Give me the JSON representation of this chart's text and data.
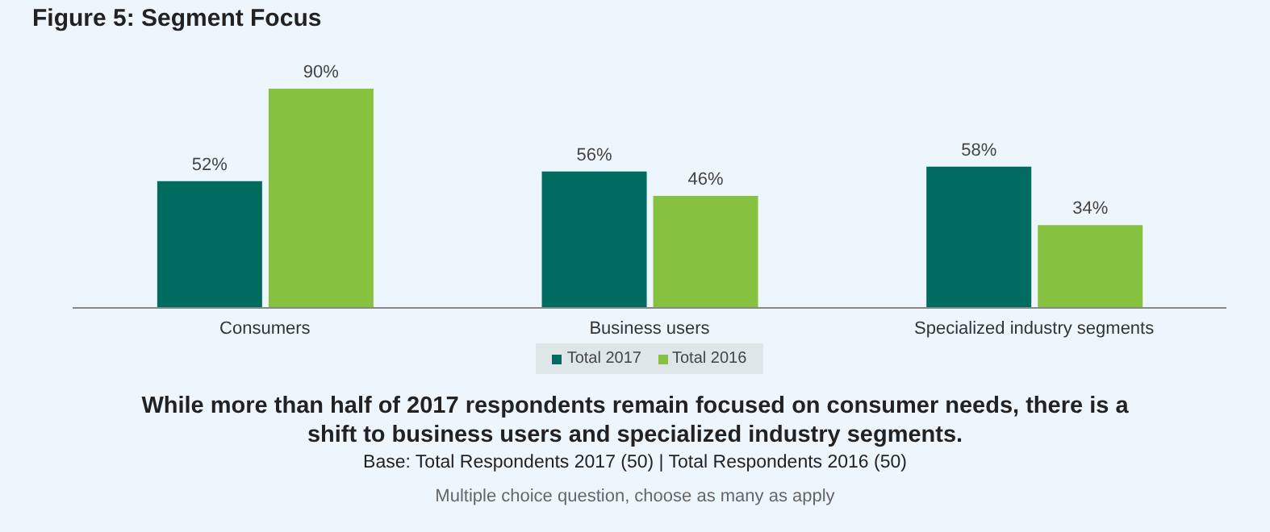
{
  "chart_data": {
    "type": "bar",
    "title": "Figure 5: Segment Focus",
    "categories": [
      "Consumers",
      "Business users",
      "Specialized industry segments"
    ],
    "series": [
      {
        "name": "Total 2017",
        "color": "#006b5f",
        "values": [
          52,
          56,
          58
        ],
        "value_labels": [
          "52%",
          "56%",
          "58%"
        ]
      },
      {
        "name": "Total 2016",
        "color": "#86c240",
        "values": [
          90,
          46,
          34
        ],
        "value_labels": [
          "90%",
          "46%",
          "34%"
        ]
      }
    ],
    "legend": "bottom",
    "annotations": [
      "While more than half of 2017 respondents remain focused on consumer needs, there is a shift to business users and specialized industry segments.",
      "Base: Total Respondents 2017 (50) | Total Respondents 2016 (50)",
      "Multiple choice question, choose as many as apply"
    ]
  }
}
